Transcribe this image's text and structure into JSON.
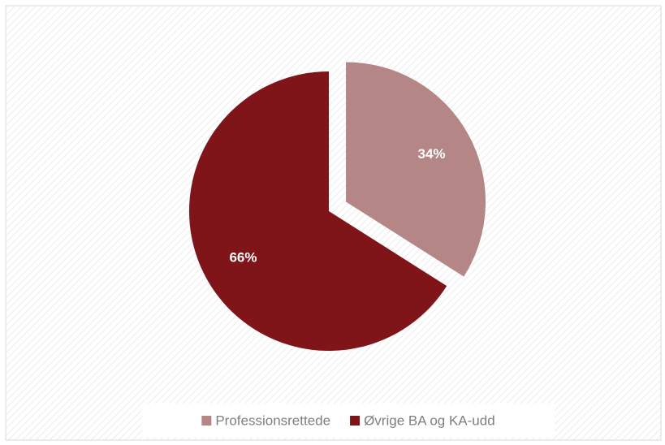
{
  "chart_data": {
    "type": "pie",
    "categories": [
      "Professionsrettede",
      "Øvrige BA og KA-udd"
    ],
    "values": [
      34,
      66
    ],
    "value_labels": [
      "34%",
      "66%"
    ],
    "colors": [
      "#b48686",
      "#7f1519"
    ],
    "legend": "bottom"
  }
}
